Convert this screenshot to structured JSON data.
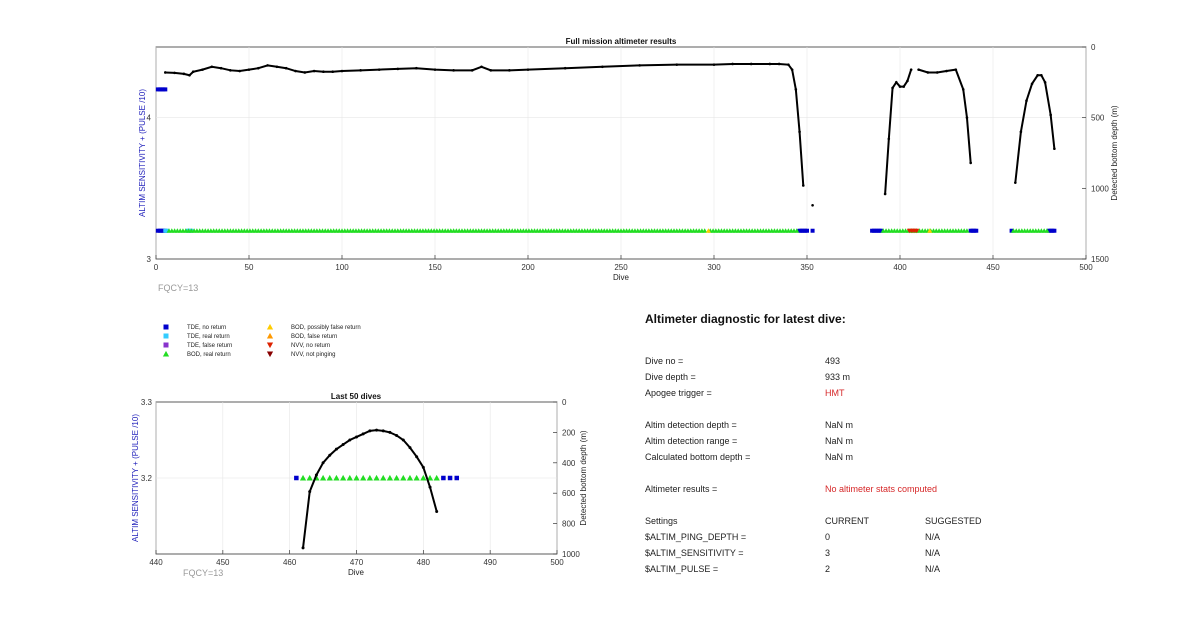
{
  "top_plot": {
    "title": "Full mission altimeter results",
    "xlabel": "Dive",
    "ylabel_left": "ALTIM SENSITIVITY + (PULSE /10)",
    "ylabel_right": "Detected bottom depth (m)",
    "footnote": "FQCY=13",
    "xticks": [
      "0",
      "50",
      "100",
      "150",
      "200",
      "250",
      "300",
      "350",
      "400",
      "450",
      "500"
    ],
    "yticks_left": [
      "3",
      "4"
    ],
    "yticks_right": [
      "0",
      "500",
      "1000",
      "1500"
    ]
  },
  "bottom_plot": {
    "title": "Last 50 dives",
    "xlabel": "Dive",
    "ylabel_left": "ALTIM SENSITIVITY + (PULSE /10)",
    "ylabel_right": "Detected bottom depth (m)",
    "footnote": "FQCY=13",
    "xticks": [
      "440",
      "450",
      "460",
      "470",
      "480",
      "490",
      "500"
    ],
    "yticks_left": [
      "3.2",
      "3.3"
    ],
    "yticks_right": [
      "0",
      "200",
      "400",
      "600",
      "800",
      "1000"
    ]
  },
  "legend": [
    {
      "label": "TDE, no return",
      "marker": "square",
      "color": "#0000cc"
    },
    {
      "label": "TDE, real return",
      "marker": "square",
      "color": "#33ccff"
    },
    {
      "label": "TDE, false return",
      "marker": "square",
      "color": "#8833cc"
    },
    {
      "label": "BOD, real return",
      "marker": "triangle-up",
      "color": "#22dd22"
    },
    {
      "label": "BOD, possibly false return",
      "marker": "triangle-up",
      "color": "#ffcc00"
    },
    {
      "label": "BOD, false return",
      "marker": "triangle-up",
      "color": "#ff9900"
    },
    {
      "label": "NVV, no return",
      "marker": "triangle-down",
      "color": "#dd2200"
    },
    {
      "label": "NVV, not pinging",
      "marker": "triangle-down",
      "color": "#880000"
    }
  ],
  "diagnostic": {
    "heading": "Altimeter diagnostic for latest dive:",
    "dive_no_label": "Dive no =",
    "dive_no_value": "493",
    "dive_depth_label": "Dive depth =",
    "dive_depth_value": "933 m",
    "apogee_label": "Apogee trigger =",
    "apogee_value": "HMT",
    "det_depth_label": "Altim detection depth =",
    "det_depth_value": "NaN m",
    "det_range_label": "Altim detection range =",
    "det_range_value": "NaN m",
    "calc_bottom_label": "Calculated bottom depth =",
    "calc_bottom_value": "NaN m",
    "results_label": "Altimeter results =",
    "results_value": "No altimeter stats computed",
    "settings_label": "Settings",
    "current_label": "CURRENT",
    "suggested_label": "SUGGESTED",
    "settings": [
      {
        "name": "$ALTIM_PING_DEPTH =",
        "current": "0",
        "suggested": "N/A"
      },
      {
        "name": "$ALTIM_SENSITIVITY =",
        "current": "3",
        "suggested": "N/A"
      },
      {
        "name": "$ALTIM_PULSE =",
        "current": "2",
        "suggested": "N/A"
      }
    ]
  },
  "chart_data": [
    {
      "type": "line",
      "title": "Full mission altimeter results",
      "xlabel": "Dive",
      "ylabel": "ALTIM SENSITIVITY + (PULSE /10)",
      "ylabel_right": "Detected bottom depth (m)",
      "xlim": [
        0,
        500
      ],
      "ylim_left": [
        3,
        4.5
      ],
      "ylim_right": [
        0,
        1500
      ],
      "grid": true,
      "series": [
        {
          "name": "",
          "axis": "right",
          "segments": [
            {
              "x": [
                5,
                10,
                15,
                18,
                20,
                25,
                30,
                35,
                40,
                45,
                50,
                55,
                60,
                65,
                70,
                75,
                80,
                85,
                90,
                95,
                100,
                110,
                120,
                130,
                140,
                150,
                160,
                170,
                175,
                180,
                190,
                200,
                220,
                240,
                260,
                280,
                300,
                310,
                320,
                330,
                335,
                340,
                342,
                344,
                346,
                348
              ],
              "y": [
                180,
                183,
                190,
                200,
                175,
                160,
                140,
                150,
                165,
                170,
                160,
                150,
                130,
                140,
                150,
                170,
                180,
                170,
                175,
                175,
                170,
                165,
                160,
                155,
                150,
                160,
                165,
                165,
                140,
                165,
                165,
                160,
                150,
                140,
                130,
                125,
                125,
                120,
                120,
                120,
                120,
                125,
                160,
                300,
                600,
                980
              ]
            },
            {
              "x": [
                353
              ],
              "y": [
                1120
              ]
            },
            {
              "x": [
                392,
                394,
                396,
                398,
                400,
                402,
                404,
                406
              ],
              "y": [
                1040,
                650,
                290,
                250,
                280,
                280,
                240,
                160
              ]
            },
            {
              "x": [
                410,
                415,
                420,
                425,
                430,
                434,
                436,
                438
              ],
              "y": [
                160,
                180,
                180,
                170,
                160,
                300,
                500,
                820
              ]
            },
            {
              "x": [
                462,
                465,
                468,
                471,
                474,
                476,
                478,
                481,
                483
              ],
              "y": [
                960,
                600,
                380,
                260,
                200,
                200,
                250,
                480,
                720
              ]
            }
          ]
        },
        {
          "name": "",
          "axis": "left",
          "marker_rows": [
            {
              "marker": "TDE, no return",
              "x": [
                1,
                2,
                3,
                4,
                5,
                346,
                347,
                348,
                349,
                350,
                353,
                385,
                386,
                387,
                388,
                389,
                390,
                438,
                439,
                440,
                441,
                460,
                480,
                481,
                482,
                483
              ]
            },
            {
              "marker": "TDE, real return",
              "x": [
                5,
                6,
                17,
                18,
                19
              ]
            },
            {
              "marker": "BOD, real return",
              "x_range": [
                [
                  7,
                  296
                ],
                [
                  298,
                  345
                ],
                [
                  391,
                  437
                ],
                [
                  461,
                  479
                ]
              ]
            },
            {
              "marker": "BOD, possibly false return",
              "x": [
                297,
                416
              ]
            },
            {
              "marker": "NVV, no return",
              "x": [
                405,
                406,
                407,
                408,
                409
              ]
            }
          ],
          "y_left": 3.2,
          "y_left_first_markers": 4.2
        }
      ]
    },
    {
      "type": "line",
      "title": "Last 50 dives",
      "xlabel": "Dive",
      "ylabel": "ALTIM SENSITIVITY + (PULSE /10)",
      "ylabel_right": "Detected bottom depth (m)",
      "xlim": [
        440,
        500
      ],
      "ylim_left": [
        3.1,
        3.3
      ],
      "ylim_right": [
        0,
        1000
      ],
      "grid": true,
      "series": [
        {
          "name": "",
          "axis": "right",
          "x": [
            462,
            463,
            464,
            465,
            466,
            467,
            468,
            469,
            470,
            471,
            472,
            473,
            474,
            475,
            476,
            477,
            478,
            479,
            480,
            481,
            482
          ],
          "y": [
            960,
            590,
            480,
            400,
            350,
            310,
            280,
            250,
            230,
            210,
            190,
            185,
            190,
            200,
            220,
            250,
            300,
            360,
            430,
            560,
            720
          ]
        },
        {
          "name": "",
          "axis": "left",
          "y_left": 3.2,
          "markers_tde_no_return": [
            461,
            483,
            484,
            485
          ],
          "markers_bod_real": [
            462,
            463,
            464,
            465,
            466,
            467,
            468,
            469,
            470,
            471,
            472,
            473,
            474,
            475,
            476,
            477,
            478,
            479,
            480,
            481,
            482
          ]
        }
      ]
    }
  ]
}
